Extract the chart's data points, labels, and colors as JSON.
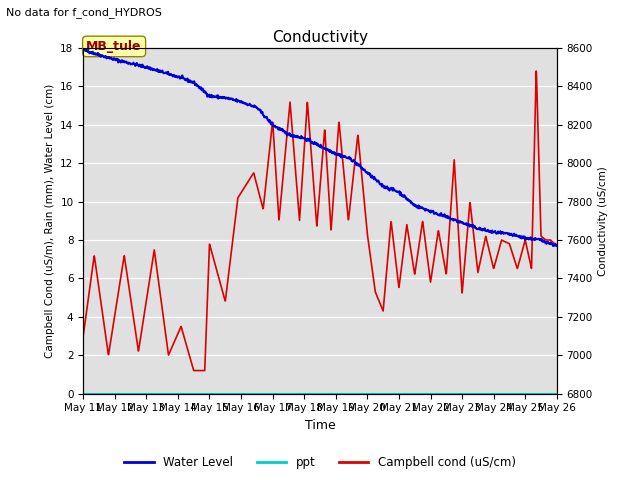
{
  "title": "Conductivity",
  "top_left_text": "No data for f_cond_HYDROS",
  "ylabel_left": "Campbell Cond (uS/m), Rain (mm), Water Level (cm)",
  "ylabel_right": "Conductivity (uS/cm)",
  "xlabel": "Time",
  "ylim_left": [
    0,
    18
  ],
  "ylim_right": [
    6800,
    8600
  ],
  "bg_color": "#e0e0e0",
  "annotation_label": "MB_tule",
  "annotation_color": "#ffffaa",
  "annotation_border": "#888800",
  "xtick_labels": [
    "May 11",
    "May 12",
    "May 13",
    "May 14",
    "May 15",
    "May 16",
    "May 17",
    "May 18",
    "May 19",
    "May 20",
    "May 21",
    "May 22",
    "May 23",
    "May 24",
    "May 25",
    "May 26"
  ],
  "water_level_color": "#0000dd",
  "ppt_color": "#00cccc",
  "campbell_color": "#dd0000",
  "legend_entries": [
    "Water Level",
    "ppt",
    "Campbell cond (uS/cm)"
  ],
  "campbell_key_x": [
    0,
    0.35,
    0.8,
    1.3,
    1.75,
    2.25,
    2.7,
    3.1,
    3.5,
    3.85,
    4.0,
    4.5,
    4.9,
    5.4,
    5.7,
    6.0,
    6.2,
    6.55,
    6.85,
    7.1,
    7.4,
    7.65,
    7.85,
    8.1,
    8.4,
    8.7,
    9.0,
    9.25,
    9.5,
    9.75,
    10.0,
    10.25,
    10.5,
    10.75,
    11.0,
    11.25,
    11.5,
    11.75,
    12.0,
    12.25,
    12.5,
    12.75,
    13.0,
    13.25,
    13.5,
    13.75,
    14.0,
    14.2,
    14.35,
    14.5,
    14.65,
    14.8,
    15.0
  ],
  "campbell_key_y": [
    3,
    7.2,
    2.0,
    7.2,
    2.2,
    7.5,
    2.0,
    3.5,
    1.2,
    1.2,
    7.8,
    4.8,
    10.2,
    11.5,
    9.6,
    14.2,
    9.0,
    15.2,
    9.0,
    15.2,
    8.7,
    13.8,
    8.5,
    14.2,
    9.0,
    13.5,
    8.3,
    5.3,
    4.3,
    9.0,
    5.5,
    8.8,
    6.2,
    9.0,
    5.8,
    8.5,
    6.2,
    12.2,
    5.2,
    10.0,
    6.3,
    8.2,
    6.5,
    8.0,
    7.8,
    6.5,
    8.0,
    6.5,
    17.0,
    8.2,
    8.0,
    8.0,
    7.7
  ],
  "water_key_x": [
    0,
    1,
    2,
    3,
    3.5,
    4,
    4.5,
    5,
    5.5,
    6,
    6.5,
    7,
    7.5,
    8,
    8.5,
    9,
    9.5,
    10,
    10.5,
    11,
    11.5,
    12,
    12.5,
    13,
    13.5,
    14,
    14.5,
    15
  ],
  "water_key_y": [
    17.9,
    17.4,
    17.0,
    16.5,
    16.2,
    15.5,
    15.4,
    15.2,
    14.9,
    14.0,
    13.5,
    13.3,
    12.9,
    12.5,
    12.2,
    11.5,
    10.8,
    10.5,
    9.8,
    9.5,
    9.2,
    8.9,
    8.6,
    8.4,
    8.3,
    8.1,
    8.0,
    7.7
  ]
}
